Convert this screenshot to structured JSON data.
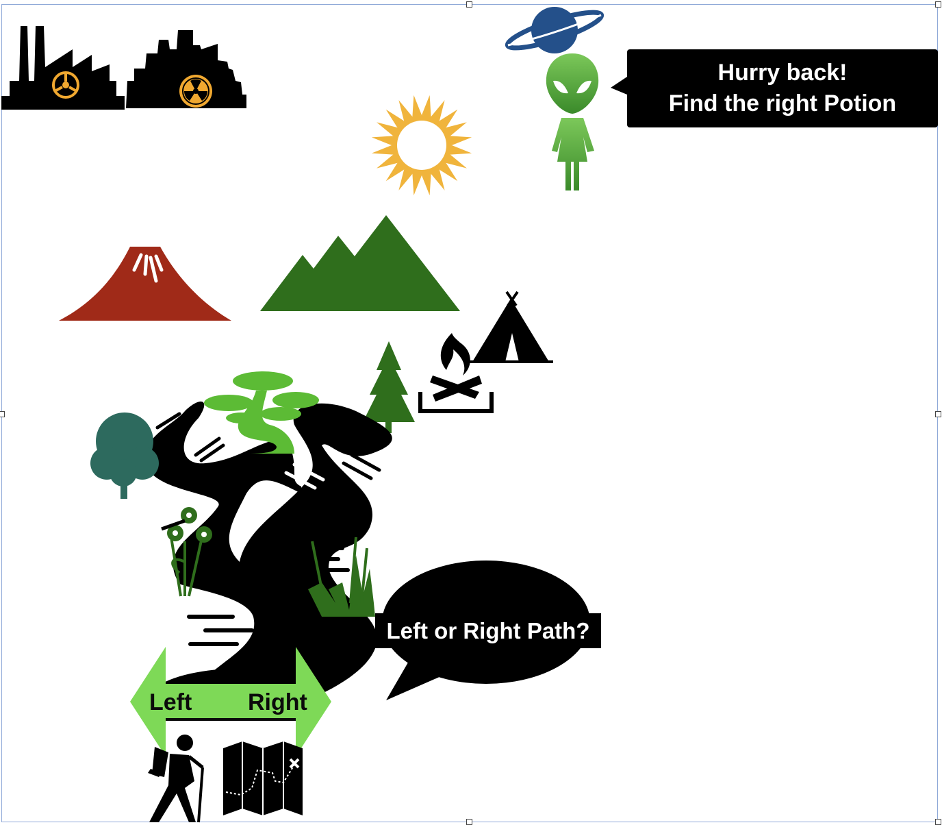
{
  "alien_speech": {
    "line1": "Hurry back!",
    "line2": "Find the right Potion"
  },
  "path_question": "Left or Right Path?",
  "direction_arrow": {
    "left_label": "Left",
    "right_label": "Right"
  },
  "icons": [
    "factory-biohazard-icon",
    "city-radiation-icon",
    "planet-icon",
    "alien-icon",
    "sun-icon",
    "volcano-icon",
    "mountains-icon",
    "tent-icon",
    "campfire-icon",
    "pine-tree-icon",
    "bonsai-tree-icon",
    "oak-tree-icon",
    "flowers-icon",
    "grass-icon",
    "winding-path-icon",
    "hiker-icon",
    "map-icon"
  ],
  "colors": {
    "volcano": "#a02a18",
    "mountains": "#2f6e1c",
    "sun": "#f0b43c",
    "planet": "#24508a",
    "alien": "#5aa83a",
    "arrow": "#7ed957",
    "oak": "#2d6a5e",
    "bonsai": "#5cbb35",
    "pine": "#2f6e1c",
    "hazard": "#f0a830"
  }
}
